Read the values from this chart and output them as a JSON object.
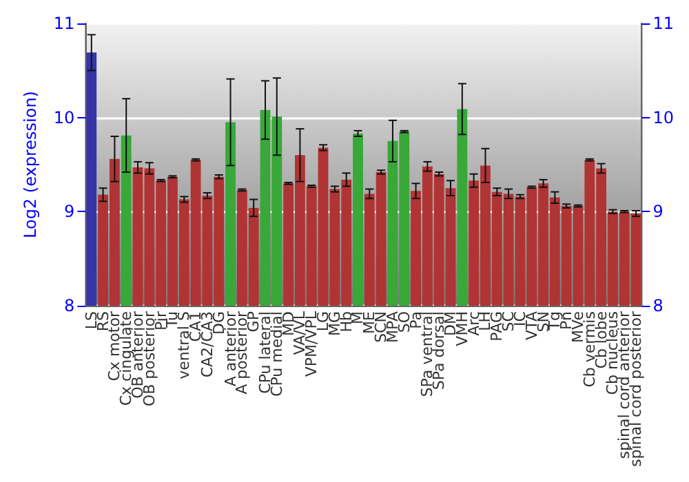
{
  "chart_data": {
    "type": "bar",
    "ylabel": "Log2 (expression)",
    "categories": [
      "LS",
      "RS",
      "Cx motor",
      "Cx cingulate",
      "OB anterior",
      "OB posterior",
      "Pir",
      "Tu",
      "ventral S",
      "CA1",
      "CA2/CA3",
      "DG",
      "A anterior",
      "A posterior",
      "GP",
      "CPu lateral",
      "CPu medial",
      "MD",
      "VA/VL",
      "VPM/VPL",
      "LG",
      "MG",
      "Hb",
      "M",
      "ME",
      "SCN",
      "MPA",
      "SO",
      "Pa",
      "SPa ventral",
      "SPa dorsal",
      "DM",
      "VMH",
      "Arc",
      "LH",
      "PAG",
      "SC",
      "IC",
      "VTA",
      "SN",
      "Tg",
      "Pn",
      "MVe",
      "Cb vermis",
      "Cb lobe",
      "Cb nucleus",
      "spinal cord anterior",
      "spinal cord posterior"
    ],
    "values": [
      10.69,
      9.18,
      9.56,
      9.81,
      9.47,
      9.46,
      9.33,
      9.37,
      9.13,
      9.55,
      9.17,
      9.37,
      9.95,
      9.23,
      9.04,
      10.08,
      10.01,
      9.3,
      9.6,
      9.27,
      9.68,
      9.24,
      9.34,
      9.83,
      9.19,
      9.42,
      9.75,
      9.85,
      9.22,
      9.48,
      9.4,
      9.25,
      10.09,
      9.33,
      9.49,
      9.21,
      9.19,
      9.16,
      9.26,
      9.3,
      9.15,
      9.06,
      9.06,
      9.55,
      9.46,
      9.0,
      9.0,
      8.98
    ],
    "errors": [
      0.19,
      0.07,
      0.24,
      0.39,
      0.06,
      0.06,
      0.01,
      0.01,
      0.03,
      0.01,
      0.03,
      0.02,
      0.46,
      0.01,
      0.09,
      0.31,
      0.41,
      0.01,
      0.28,
      0.01,
      0.03,
      0.03,
      0.07,
      0.03,
      0.05,
      0.02,
      0.22,
      0.01,
      0.08,
      0.05,
      0.02,
      0.08,
      0.27,
      0.07,
      0.18,
      0.04,
      0.05,
      0.02,
      0.01,
      0.04,
      0.06,
      0.02,
      0.01,
      0.01,
      0.05,
      0.02,
      0.01,
      0.03
    ],
    "colors": [
      "#3535a8",
      "#b03434",
      "#b03434",
      "#38a838",
      "#b03434",
      "#b03434",
      "#b03434",
      "#b03434",
      "#b03434",
      "#b03434",
      "#b03434",
      "#b03434",
      "#38a838",
      "#b03434",
      "#b03434",
      "#38a838",
      "#38a838",
      "#b03434",
      "#b03434",
      "#b03434",
      "#b03434",
      "#b03434",
      "#b03434",
      "#38a838",
      "#b03434",
      "#b03434",
      "#38a838",
      "#38a838",
      "#b03434",
      "#b03434",
      "#b03434",
      "#b03434",
      "#38a838",
      "#b03434",
      "#b03434",
      "#b03434",
      "#b03434",
      "#b03434",
      "#b03434",
      "#b03434",
      "#b03434",
      "#b03434",
      "#b03434",
      "#b03434",
      "#b03434",
      "#b03434",
      "#b03434",
      "#b03434"
    ],
    "ylim": [
      8,
      11
    ],
    "yticks": [
      8,
      9,
      10,
      11
    ],
    "y2lim": [
      8,
      11
    ],
    "y2ticks": [
      8,
      9,
      10,
      11
    ],
    "grid": "y"
  }
}
